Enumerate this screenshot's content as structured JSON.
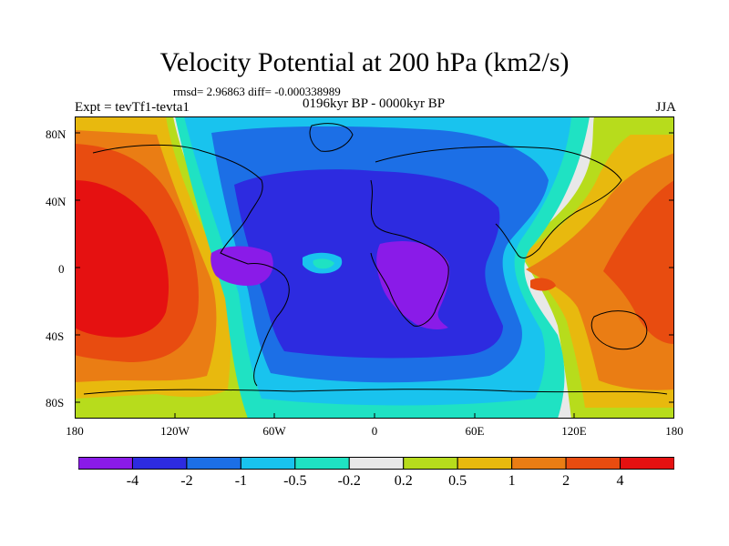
{
  "title": "Velocity Potential at 200 hPa (km2/s)",
  "stats": "rmsd= 2.96863 diff= -0.000338989",
  "experiment": "Expt = tevTf1-tevta1",
  "period": "0196kyr BP - 0000kyr BP",
  "season": "JJA",
  "map": {
    "lat_ticks": [
      "80N",
      "40N",
      "0",
      "40S",
      "80S"
    ],
    "lon_ticks": [
      "180",
      "120W",
      "60W",
      "0",
      "60E",
      "120E",
      "180"
    ]
  },
  "colorbar": {
    "colors": [
      "#8a1be8",
      "#2d2be0",
      "#1c6fe6",
      "#19c3ee",
      "#1fe2c3",
      "#e8e8e8",
      "#b7dc1c",
      "#e8b90e",
      "#ea7d14",
      "#e84c10",
      "#e51111"
    ],
    "labels": [
      "-4",
      "-2",
      "-1",
      "-0.5",
      "-0.2",
      "0.2",
      "0.5",
      "1",
      "2",
      "4"
    ]
  }
}
